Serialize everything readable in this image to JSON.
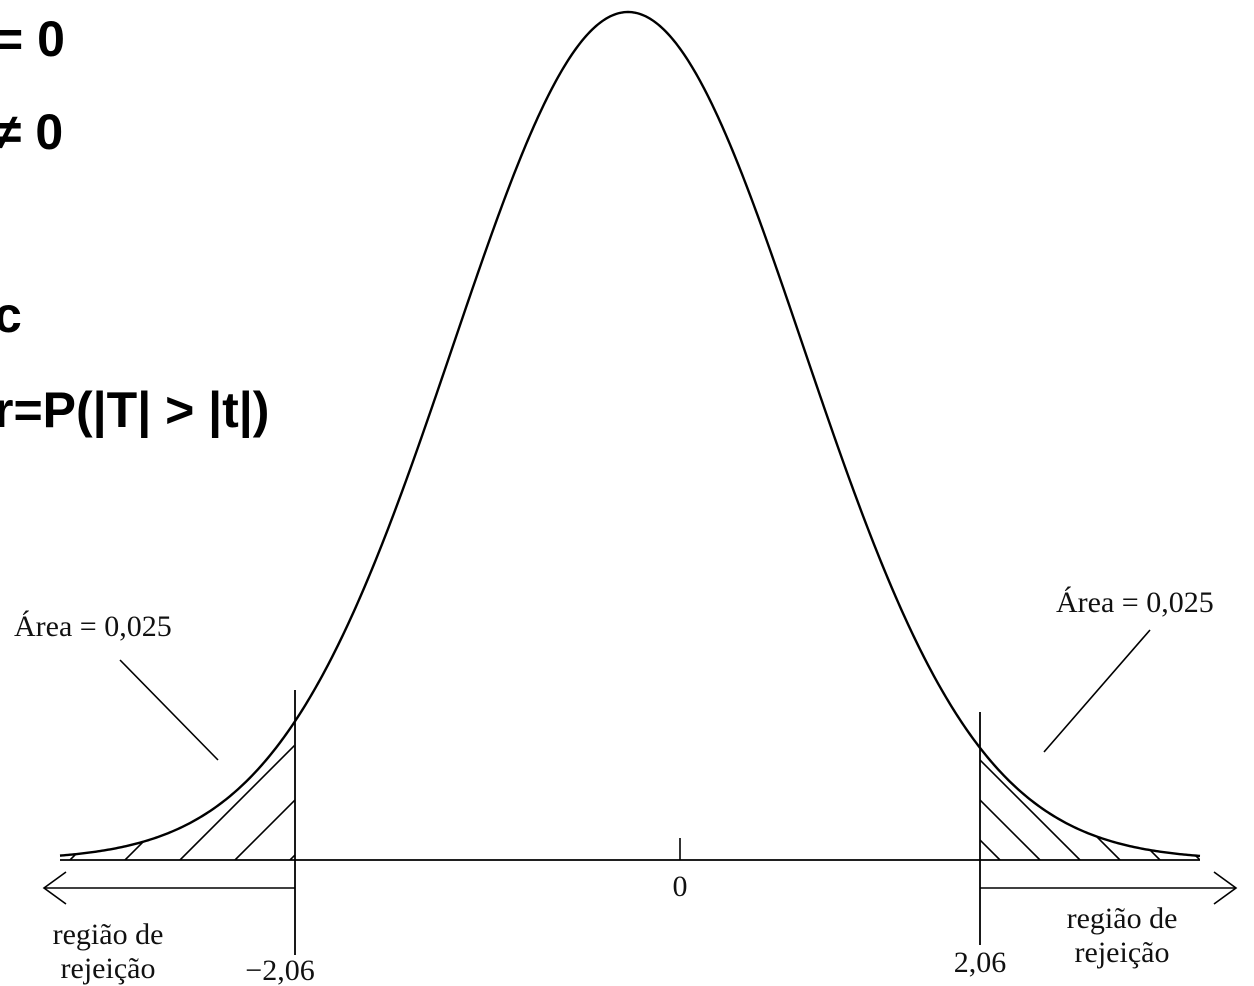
{
  "text_overlay": {
    "line1": "= 0",
    "line2": "≠ 0",
    "line3": "c",
    "line4": "r=P(|T| > |t|)"
  },
  "distribution": {
    "center_label": "0",
    "critical_left": "−2,06",
    "critical_right": "2,06",
    "area_left": "Área = 0,025",
    "area_right": "Área = 0,025",
    "rejection_left": [
      "região de",
      "rejeição"
    ],
    "rejection_right": [
      "região de",
      "rejeição"
    ]
  }
}
